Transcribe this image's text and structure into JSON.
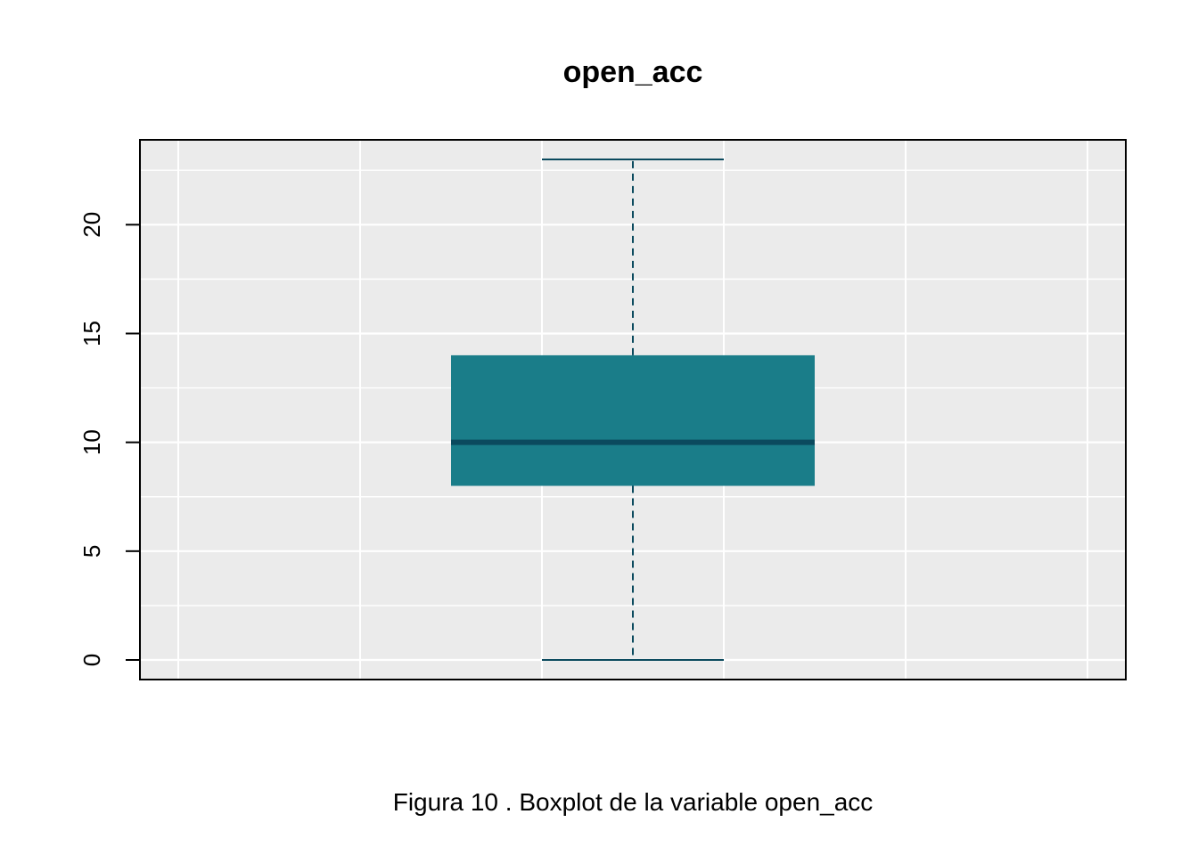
{
  "chart_data": {
    "type": "boxplot",
    "title": "open_acc",
    "caption": "Figura  10 . Boxplot de la variable  open_acc",
    "xlabel": "",
    "ylabel": "",
    "ylim": [
      -0.9,
      23.9
    ],
    "y_ticks": [
      0,
      5,
      10,
      15,
      20
    ],
    "y_tick_labels": [
      "0",
      "5",
      "10",
      "15",
      "20"
    ],
    "grid": true,
    "stats": {
      "min": 0,
      "q1": 8,
      "median": 10,
      "q3": 14,
      "max": 23
    },
    "colors": {
      "box_fill": "#1a7d89",
      "median_line": "#0b4a5e",
      "whisker": "#0b4a5e",
      "panel_bg": "#ebebeb",
      "grid": "#ffffff"
    }
  }
}
